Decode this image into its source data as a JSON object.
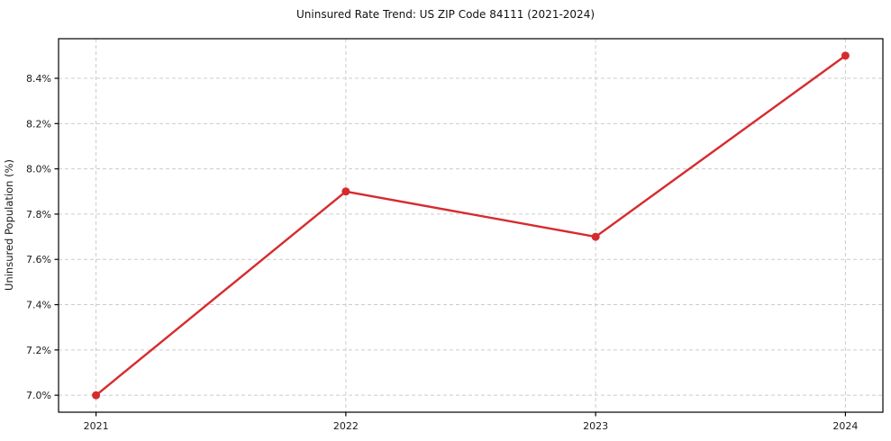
{
  "chart_data": {
    "type": "line",
    "title": "Uninsured Rate Trend: US ZIP Code 84111 (2021-2024)",
    "xlabel": "",
    "ylabel": "Uninsured Population (%)",
    "x": [
      2021,
      2022,
      2023,
      2024
    ],
    "x_tick_labels": [
      "2021",
      "2022",
      "2023",
      "2024"
    ],
    "values": [
      7.0,
      7.9,
      7.7,
      8.5
    ],
    "y_ticks": [
      7.0,
      7.2,
      7.4,
      7.6,
      7.8,
      8.0,
      8.2,
      8.4
    ],
    "y_tick_suffix": "%",
    "y_tick_decimals": 1,
    "xlim": [
      2020.85,
      2024.15
    ],
    "ylim": [
      6.925,
      8.575
    ],
    "grid": true,
    "legend": "none",
    "colors": {
      "line": "#d62b2e",
      "marker": "#d62b2e",
      "grid": "#cccccc",
      "spine": "#000000",
      "text": "#1a1a1a"
    }
  }
}
